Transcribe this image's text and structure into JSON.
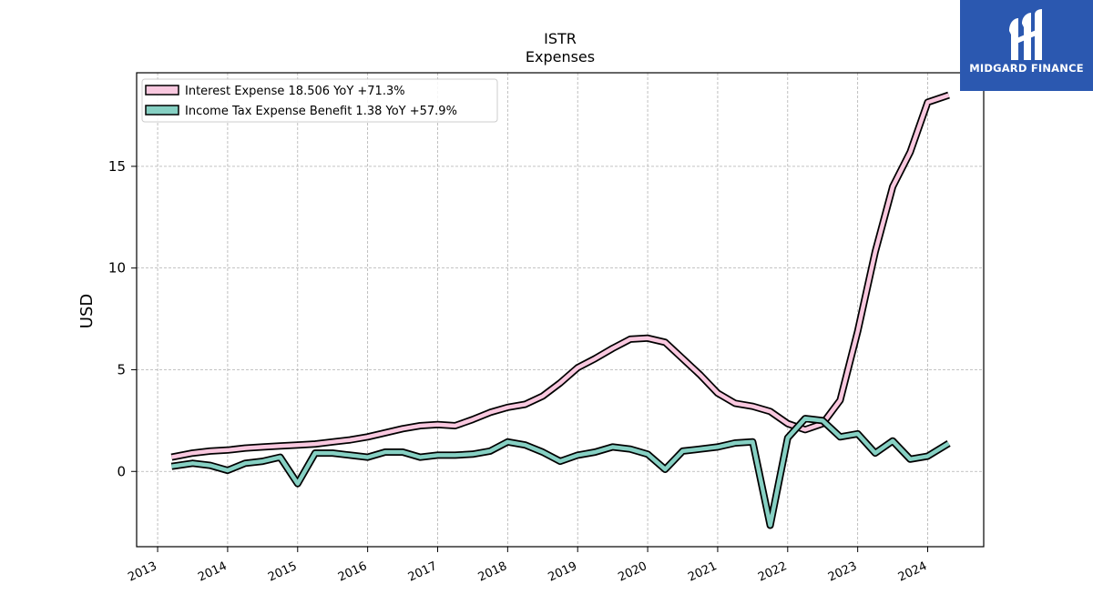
{
  "brand": {
    "name": "MIDGARD FINANCE",
    "color": "#2b58b0"
  },
  "chart_data": {
    "type": "line",
    "title": "ISTR",
    "subtitle": "Expenses",
    "xlabel": "",
    "ylabel": "USD",
    "xlim": [
      2012.7,
      2024.8
    ],
    "ylim": [
      -3.7,
      19.6
    ],
    "x_ticks": [
      "2013",
      "2014",
      "2015",
      "2016",
      "2017",
      "2018",
      "2019",
      "2020",
      "2021",
      "2022",
      "2023",
      "2024"
    ],
    "y_ticks": [
      "0",
      "5",
      "10",
      "15"
    ],
    "grid": true,
    "legend_position": "top-left",
    "series": [
      {
        "name": "Interest Expense",
        "legend_label": "Interest Expense  18.506 YoY +71.3%",
        "color": "#f9c8df",
        "x": [
          2013.2,
          2013.5,
          2013.75,
          2014.0,
          2014.25,
          2014.5,
          2014.75,
          2015.0,
          2015.25,
          2015.5,
          2015.75,
          2016.0,
          2016.25,
          2016.5,
          2016.75,
          2017.0,
          2017.25,
          2017.5,
          2017.75,
          2018.0,
          2018.25,
          2018.5,
          2018.75,
          2019.0,
          2019.25,
          2019.5,
          2019.75,
          2020.0,
          2020.25,
          2020.5,
          2020.75,
          2021.0,
          2021.25,
          2021.5,
          2021.75,
          2022.0,
          2022.25,
          2022.5,
          2022.75,
          2023.0,
          2023.25,
          2023.5,
          2023.75,
          2024.0,
          2024.3
        ],
        "values": [
          0.7,
          0.9,
          1.0,
          1.05,
          1.15,
          1.2,
          1.25,
          1.3,
          1.35,
          1.45,
          1.55,
          1.7,
          1.9,
          2.1,
          2.25,
          2.3,
          2.25,
          2.55,
          2.9,
          3.15,
          3.3,
          3.7,
          4.35,
          5.1,
          5.55,
          6.05,
          6.5,
          6.55,
          6.35,
          5.55,
          4.75,
          3.85,
          3.35,
          3.2,
          2.95,
          2.35,
          2.05,
          2.35,
          3.5,
          6.9,
          10.8,
          14.0,
          15.7,
          18.15,
          18.5
        ]
      },
      {
        "name": "Income Tax Expense Benefit",
        "legend_label": "Income Tax Expense Benefit  1.38 YoY +57.9%",
        "color": "#86d0c3",
        "x": [
          2013.2,
          2013.5,
          2013.75,
          2014.0,
          2014.25,
          2014.5,
          2014.75,
          2015.0,
          2015.25,
          2015.5,
          2015.75,
          2016.0,
          2016.25,
          2016.5,
          2016.75,
          2017.0,
          2017.25,
          2017.5,
          2017.75,
          2018.0,
          2018.25,
          2018.5,
          2018.75,
          2019.0,
          2019.25,
          2019.5,
          2019.75,
          2020.0,
          2020.25,
          2020.5,
          2020.75,
          2021.0,
          2021.25,
          2021.5,
          2021.75,
          2022.0,
          2022.25,
          2022.5,
          2022.75,
          2023.0,
          2023.25,
          2023.5,
          2023.75,
          2024.0,
          2024.3
        ],
        "values": [
          0.25,
          0.4,
          0.3,
          0.05,
          0.4,
          0.5,
          0.7,
          -0.6,
          0.9,
          0.9,
          0.8,
          0.7,
          0.95,
          0.95,
          0.7,
          0.8,
          0.8,
          0.85,
          1.0,
          1.45,
          1.3,
          0.95,
          0.5,
          0.8,
          0.95,
          1.2,
          1.1,
          0.85,
          0.1,
          1.0,
          1.1,
          1.2,
          1.4,
          1.45,
          -2.65,
          1.65,
          2.6,
          2.5,
          1.7,
          1.85,
          0.9,
          1.5,
          0.6,
          0.75,
          1.38
        ]
      }
    ]
  }
}
